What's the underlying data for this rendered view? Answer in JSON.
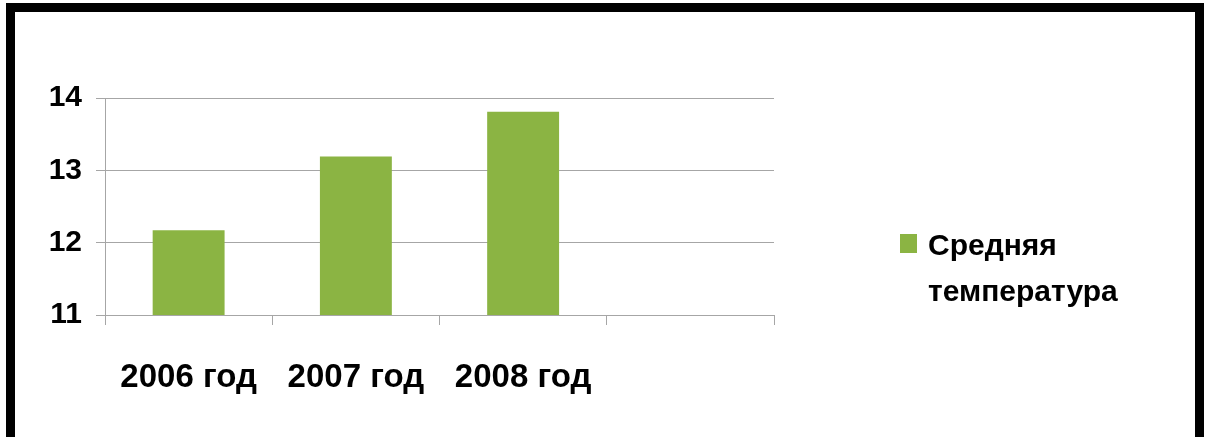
{
  "chart_data": {
    "type": "bar",
    "categories": [
      "2006 год",
      "2007 год",
      "2008 год",
      null
    ],
    "series": [
      {
        "name": "Средняя температура",
        "color": "#8bb443",
        "values": [
          12.17,
          13.19,
          13.81,
          null
        ]
      }
    ],
    "ylim": [
      11,
      14
    ],
    "yticks": [
      11,
      12,
      13,
      14
    ],
    "grid": "y",
    "legend": "right"
  }
}
